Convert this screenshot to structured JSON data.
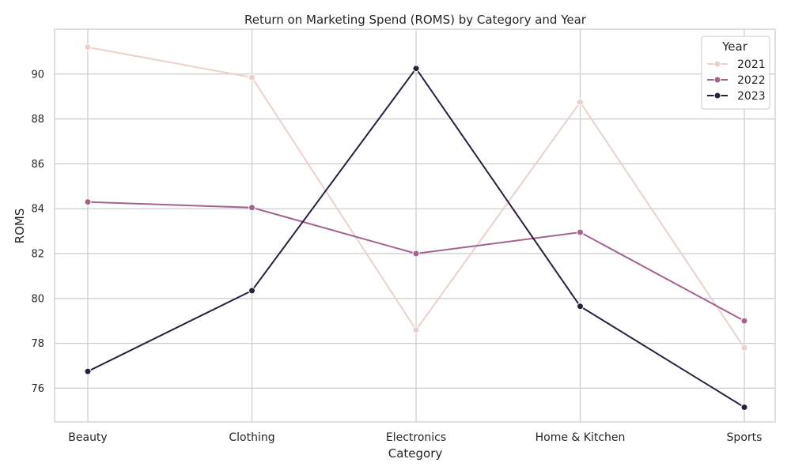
{
  "chart_data": {
    "type": "line",
    "title": "Return on Marketing Spend (ROMS) by Category and Year",
    "xlabel": "Category",
    "ylabel": "ROMS",
    "categories": [
      "Beauty",
      "Clothing",
      "Electronics",
      "Home & Kitchen",
      "Sports"
    ],
    "ylim": [
      74.5,
      92
    ],
    "yticks": [
      76,
      78,
      80,
      82,
      84,
      86,
      88,
      90
    ],
    "grid": true,
    "legend": {
      "title": "Year",
      "placement": "top-right"
    },
    "series": [
      {
        "name": "2021",
        "color": "#ebd1cc",
        "values": [
          91.2,
          89.85,
          78.6,
          88.75,
          77.8
        ]
      },
      {
        "name": "2022",
        "color": "#a6628e",
        "values": [
          84.3,
          84.05,
          82.0,
          82.95,
          79.0
        ]
      },
      {
        "name": "2023",
        "color": "#2b1f3e",
        "values": [
          76.75,
          80.35,
          90.25,
          79.65,
          75.15
        ]
      }
    ]
  }
}
